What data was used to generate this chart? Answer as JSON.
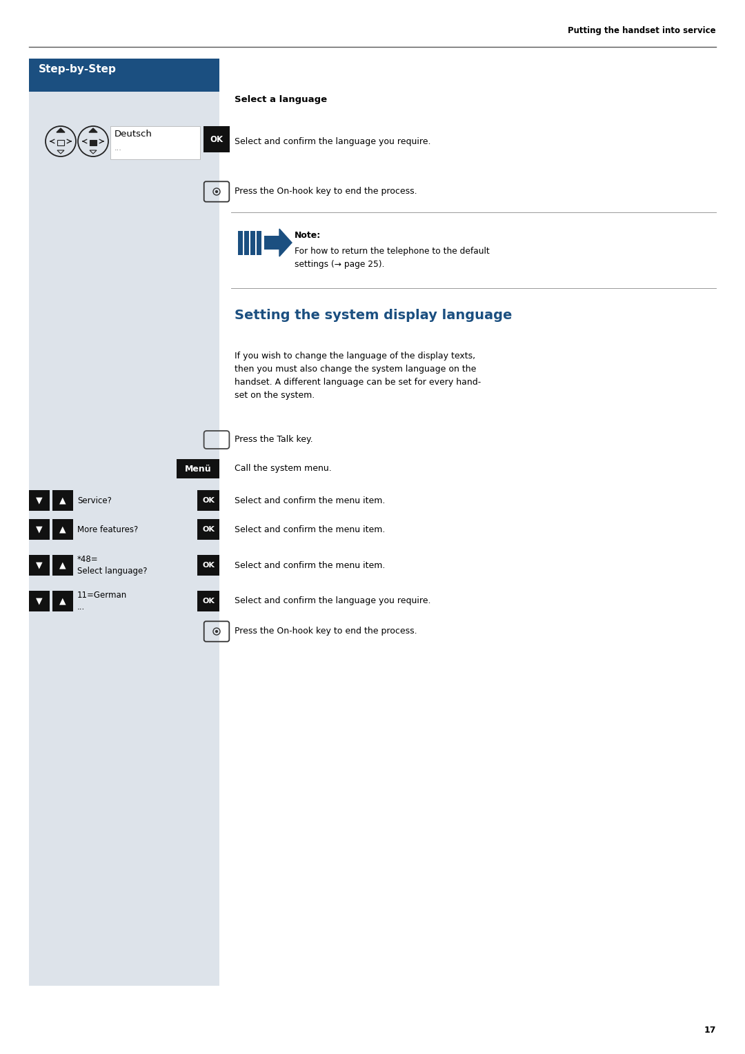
{
  "page_bg": "#ffffff",
  "left_panel_bg": "#dde3ea",
  "step_by_step_bg": "#1b4f80",
  "step_by_step_text": "Step-by-Step",
  "step_by_step_color": "#ffffff",
  "header_text": "Putting the handset into service",
  "select_language_heading": "Select a language",
  "ok_text": "OK",
  "dots": "...",
  "deutsch": "Deutsch",
  "press_onhook": "Press the On-hook key to end the process.",
  "note_label": "Note:",
  "note_text": "For how to return the telephone to the default\nsettings (→ page 25).",
  "note_bar_color": "#1b4f80",
  "section_title": "Setting the system display language",
  "section_title_color": "#1b4f80",
  "section_body": "If you wish to change the language of the display texts,\nthen you must also change the system language on the\nhandset. A different language can be set for every hand-\nset on the system.",
  "press_talk": "Press the Talk key.",
  "menu_label": "Menü",
  "call_system_menu": "Call the system menu.",
  "rows": [
    {
      "label": "Service?",
      "desc": "Select and confirm the menu item."
    },
    {
      "label": "More features?",
      "desc": "Select and confirm the menu item."
    },
    {
      "label": "*48=\nSelect language?",
      "desc": "Select and confirm the menu item."
    },
    {
      "label": "11=German\n...",
      "desc": "Select and confirm the language you require."
    }
  ],
  "press_onhook2": "Press the On-hook key to end the process.",
  "page_number": "17",
  "black": "#111111",
  "white": "#ffffff",
  "select_confirm": "Select and confirm the language you require."
}
